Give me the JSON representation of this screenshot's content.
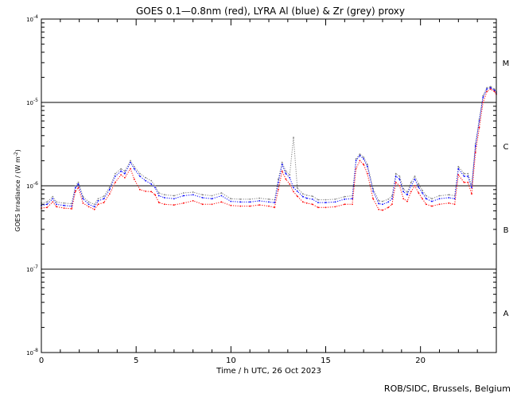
{
  "chart_data": {
    "type": "scatter",
    "title": "GOES 0.1—0.8nm (red), LYRA Al (blue) & Zr (grey) proxy",
    "xlabel": "Time / h UTC, 26 Oct 2023",
    "ylabel": "GOES Irradiance / (W m",
    "ylabel_exp": "-2",
    "ylabel_close": ")",
    "xlim": [
      0,
      24
    ],
    "ylim": [
      1e-08,
      0.0001
    ],
    "yscale": "log",
    "x_ticks": [
      0,
      5,
      10,
      15,
      20
    ],
    "x_tick_labels": [
      "0",
      "5",
      "10",
      "15",
      "20"
    ],
    "y_ticks": [
      1e-08,
      1e-07,
      1e-06,
      1e-05,
      0.0001
    ],
    "y_tick_labels": [
      {
        "base": "10",
        "exp": "-8"
      },
      {
        "base": "10",
        "exp": "-7"
      },
      {
        "base": "10",
        "exp": "-6"
      },
      {
        "base": "10",
        "exp": "-5"
      },
      {
        "base": "10",
        "exp": "-4"
      }
    ],
    "flare_class_lines": [
      1e-07,
      1e-06,
      1e-05
    ],
    "flare_class_labels": [
      {
        "label": "A",
        "y": 3e-08
      },
      {
        "label": "B",
        "y": 3e-07
      },
      {
        "label": "C",
        "y": 3e-06
      },
      {
        "label": "M",
        "y": 3e-05
      }
    ],
    "colors": {
      "goes": "#ff0000",
      "lyra_al": "#0000ff",
      "lyra_zr": "#808080"
    },
    "series": [
      {
        "key": "goes",
        "x": [
          0.0,
          0.3,
          0.6,
          0.8,
          1.2,
          1.6,
          1.8,
          1.95,
          2.2,
          2.5,
          2.8,
          3.0,
          3.3,
          3.6,
          3.9,
          4.2,
          4.4,
          4.7,
          4.9,
          5.2,
          5.5,
          5.8,
          6.0,
          6.2,
          6.5,
          7.0,
          7.5,
          8.0,
          8.5,
          9.0,
          9.5,
          10.0,
          10.5,
          11.0,
          11.5,
          12.0,
          12.3,
          12.5,
          12.7,
          12.9,
          13.1,
          13.3,
          13.5,
          13.8,
          14.0,
          14.3,
          14.6,
          15.0,
          15.5,
          16.0,
          16.4,
          16.6,
          16.8,
          17.0,
          17.2,
          17.5,
          17.8,
          18.0,
          18.3,
          18.5,
          18.7,
          18.9,
          19.1,
          19.3,
          19.5,
          19.7,
          19.9,
          20.1,
          20.3,
          20.6,
          21.0,
          21.5,
          21.8,
          22.0,
          22.3,
          22.5,
          22.7,
          22.9,
          23.1,
          23.3,
          23.5,
          23.7,
          23.9,
          24.0
        ],
        "y": [
          5.4e-07,
          5.5e-07,
          6.4e-07,
          5.6e-07,
          5.4e-07,
          5.3e-07,
          8.6e-07,
          9.5e-07,
          6.2e-07,
          5.6e-07,
          5.2e-07,
          6e-07,
          6.3e-07,
          8e-07,
          1.1e-06,
          1.35e-06,
          1.25e-06,
          1.6e-06,
          1.2e-06,
          9e-07,
          8.6e-07,
          8.5e-07,
          7.8e-07,
          6.3e-07,
          6e-07,
          5.9e-07,
          6.2e-07,
          6.6e-07,
          6e-07,
          6e-07,
          6.4e-07,
          5.8e-07,
          5.7e-07,
          5.7e-07,
          5.9e-07,
          5.7e-07,
          5.5e-07,
          9e-07,
          1.5e-06,
          1.2e-06,
          1.05e-06,
          8.5e-07,
          7.5e-07,
          6.4e-07,
          6.2e-07,
          6e-07,
          5.5e-07,
          5.5e-07,
          5.6e-07,
          6e-07,
          6e-07,
          1.6e-06,
          2e-06,
          1.8e-06,
          1.4e-06,
          7e-07,
          5.2e-07,
          5.1e-07,
          5.5e-07,
          6e-07,
          1.1e-06,
          1e-06,
          7e-07,
          6.5e-07,
          8.5e-07,
          1e-06,
          8.2e-07,
          7e-07,
          6e-07,
          5.7e-07,
          6e-07,
          6.2e-07,
          6e-07,
          1.35e-06,
          1.1e-06,
          1.1e-06,
          8e-07,
          2.5e-06,
          5e-06,
          1e-05,
          1.35e-05,
          1.45e-05,
          1.35e-05,
          1.25e-05
        ]
      },
      {
        "key": "lyra_al",
        "x": [
          0.0,
          0.3,
          0.6,
          0.8,
          1.2,
          1.6,
          1.8,
          1.95,
          2.2,
          2.5,
          2.8,
          3.0,
          3.3,
          3.6,
          3.9,
          4.2,
          4.4,
          4.7,
          4.9,
          5.2,
          5.5,
          5.8,
          6.0,
          6.2,
          6.5,
          7.0,
          7.5,
          8.0,
          8.5,
          9.0,
          9.5,
          10.0,
          10.5,
          11.0,
          11.5,
          12.0,
          12.3,
          12.5,
          12.7,
          12.9,
          13.1,
          13.3,
          13.5,
          13.8,
          14.0,
          14.3,
          14.6,
          15.0,
          15.5,
          16.0,
          16.4,
          16.6,
          16.8,
          17.0,
          17.2,
          17.5,
          17.8,
          18.0,
          18.3,
          18.5,
          18.7,
          18.9,
          19.1,
          19.3,
          19.5,
          19.7,
          19.9,
          20.1,
          20.3,
          20.6,
          21.0,
          21.5,
          21.8,
          22.0,
          22.3,
          22.5,
          22.7,
          22.9,
          23.1,
          23.3,
          23.5,
          23.7,
          23.9,
          24.0
        ],
        "y": [
          5.8e-07,
          6e-07,
          7e-07,
          6e-07,
          5.8e-07,
          5.7e-07,
          9.5e-07,
          1.05e-06,
          7e-07,
          6e-07,
          5.6e-07,
          6.6e-07,
          7e-07,
          9e-07,
          1.3e-06,
          1.5e-06,
          1.4e-06,
          1.9e-06,
          1.6e-06,
          1.3e-06,
          1.15e-06,
          1.05e-06,
          9.5e-07,
          7.6e-07,
          7.2e-07,
          7e-07,
          7.6e-07,
          7.8e-07,
          7.2e-07,
          7e-07,
          7.6e-07,
          6.5e-07,
          6.4e-07,
          6.4e-07,
          6.6e-07,
          6.4e-07,
          6.3e-07,
          1.1e-06,
          1.8e-06,
          1.4e-06,
          1.25e-06,
          9.5e-07,
          8.6e-07,
          7.4e-07,
          7.1e-07,
          6.9e-07,
          6.3e-07,
          6.3e-07,
          6.4e-07,
          6.9e-07,
          7e-07,
          2e-06,
          2.3e-06,
          2.1e-06,
          1.7e-06,
          8.6e-07,
          6.1e-07,
          6e-07,
          6.4e-07,
          7e-07,
          1.3e-06,
          1.2e-06,
          8.5e-07,
          7.8e-07,
          1e-06,
          1.2e-06,
          9.6e-07,
          8.2e-07,
          7e-07,
          6.5e-07,
          7e-07,
          7.2e-07,
          7e-07,
          1.6e-06,
          1.3e-06,
          1.3e-06,
          9.5e-07,
          3e-06,
          6e-06,
          1.15e-05,
          1.45e-05,
          1.5e-05,
          1.4e-05,
          1.3e-05
        ]
      },
      {
        "key": "lyra_zr",
        "x": [
          0.0,
          0.3,
          0.6,
          0.8,
          1.2,
          1.6,
          1.8,
          1.95,
          2.2,
          2.5,
          2.8,
          3.0,
          3.3,
          3.6,
          3.9,
          4.2,
          4.4,
          4.7,
          4.9,
          5.2,
          5.5,
          5.8,
          6.0,
          6.2,
          6.5,
          7.0,
          7.5,
          8.0,
          8.5,
          9.0,
          9.5,
          10.0,
          10.5,
          11.0,
          11.5,
          12.0,
          12.3,
          12.5,
          12.7,
          12.9,
          13.1,
          13.3,
          13.5,
          13.8,
          14.0,
          14.3,
          14.6,
          15.0,
          15.5,
          16.0,
          16.4,
          16.6,
          16.8,
          17.0,
          17.2,
          17.5,
          17.8,
          18.0,
          18.3,
          18.5,
          18.7,
          18.9,
          19.1,
          19.3,
          19.5,
          19.7,
          19.9,
          20.1,
          20.3,
          20.6,
          21.0,
          21.5,
          21.8,
          22.0,
          22.3,
          22.5,
          22.7,
          22.9,
          23.1,
          23.3,
          23.5,
          23.7,
          23.9,
          24.0
        ],
        "y": [
          6.2e-07,
          6.4e-07,
          7.4e-07,
          6.4e-07,
          6.2e-07,
          6.1e-07,
          1e-06,
          1.1e-06,
          7.4e-07,
          6.4e-07,
          6e-07,
          7e-07,
          7.5e-07,
          9.6e-07,
          1.4e-06,
          1.6e-06,
          1.5e-06,
          2e-06,
          1.7e-06,
          1.4e-06,
          1.25e-06,
          1.15e-06,
          1e-06,
          8.2e-07,
          7.8e-07,
          7.6e-07,
          8.2e-07,
          8.4e-07,
          7.8e-07,
          7.6e-07,
          8.2e-07,
          7e-07,
          6.9e-07,
          6.9e-07,
          7.1e-07,
          6.9e-07,
          6.8e-07,
          1.2e-06,
          1.9e-06,
          1.5e-06,
          1.35e-06,
          3.8e-06,
          9.4e-07,
          8e-07,
          7.7e-07,
          7.5e-07,
          6.8e-07,
          6.8e-07,
          6.9e-07,
          7.4e-07,
          7.6e-07,
          2.1e-06,
          2.4e-06,
          2.2e-06,
          1.8e-06,
          9.2e-07,
          6.6e-07,
          6.5e-07,
          6.9e-07,
          7.6e-07,
          1.4e-06,
          1.3e-06,
          9.2e-07,
          8.4e-07,
          1.1e-06,
          1.3e-06,
          1.05e-06,
          8.8e-07,
          7.6e-07,
          7e-07,
          7.6e-07,
          7.8e-07,
          7.6e-07,
          1.7e-06,
          1.4e-06,
          1.4e-06,
          1e-06,
          3.2e-06,
          6.3e-06,
          1.2e-05,
          1.5e-05,
          1.55e-05,
          1.45e-05,
          1.35e-05
        ]
      }
    ]
  },
  "credit": "ROB/SIDC, Brussels, Belgium"
}
